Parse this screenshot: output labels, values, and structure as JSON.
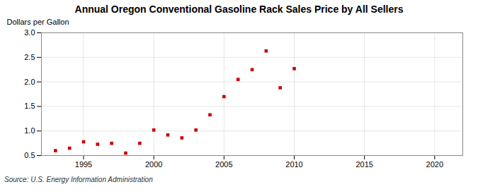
{
  "chart_data": {
    "type": "scatter",
    "title": "Annual Oregon Conventional Gasoline Rack Sales Price by All Sellers",
    "ylabel": "Dollars per Gallon",
    "source": "Source: U.S. Energy Information Administration",
    "x": [
      1993,
      1994,
      1995,
      1996,
      1997,
      1998,
      1999,
      2000,
      2001,
      2002,
      2003,
      2004,
      2005,
      2006,
      2007,
      2008,
      2009,
      2010
    ],
    "values": [
      0.6,
      0.65,
      0.78,
      0.73,
      0.75,
      0.55,
      0.75,
      1.02,
      0.92,
      0.86,
      1.02,
      1.33,
      1.7,
      2.05,
      2.25,
      2.63,
      1.88,
      2.27
    ],
    "color": "#cc0000",
    "marker": "square",
    "xlim": [
      1992,
      2022
    ],
    "xticks": [
      1995,
      2000,
      2005,
      2010,
      2015,
      2020
    ],
    "ylim": [
      0.5,
      3.0
    ],
    "yticks": [
      0.5,
      {
        "value": 1.0,
        "label": "1.0"
      },
      1.5,
      {
        "value": 2.0,
        "label": "2.0"
      },
      2.5,
      {
        "value": 3.0,
        "label": "3.0"
      }
    ],
    "grid": true
  }
}
